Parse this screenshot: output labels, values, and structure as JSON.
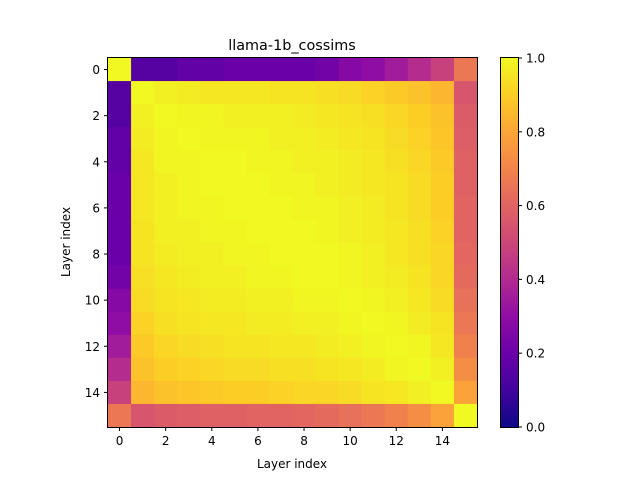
{
  "chart_data": {
    "type": "heatmap",
    "title": "llama-1b_cossims",
    "xlabel": "Layer index",
    "ylabel": "Layer index",
    "x_ticks": [
      0,
      2,
      4,
      6,
      8,
      10,
      12,
      14
    ],
    "y_ticks": [
      0,
      2,
      4,
      6,
      8,
      10,
      12,
      14
    ],
    "x_tick_labels": [
      "0",
      "2",
      "4",
      "6",
      "8",
      "10",
      "12",
      "14"
    ],
    "y_tick_labels": [
      "0",
      "2",
      "4",
      "6",
      "8",
      "10",
      "12",
      "14"
    ],
    "colormap": "plasma",
    "vmin": 0.0,
    "vmax": 1.0,
    "colorbar_ticks": [
      0.0,
      0.2,
      0.4,
      0.6,
      0.8,
      1.0
    ],
    "colorbar_tick_labels": [
      "0.0",
      "0.2",
      "0.4",
      "0.6",
      "0.8",
      "1.0"
    ],
    "matrix": [
      [
        1.0,
        0.15,
        0.15,
        0.18,
        0.18,
        0.2,
        0.2,
        0.2,
        0.2,
        0.22,
        0.27,
        0.3,
        0.35,
        0.41,
        0.48,
        0.66
      ],
      [
        0.15,
        1.0,
        0.98,
        0.97,
        0.96,
        0.96,
        0.96,
        0.95,
        0.95,
        0.94,
        0.93,
        0.91,
        0.89,
        0.87,
        0.84,
        0.55
      ],
      [
        0.15,
        0.98,
        1.0,
        0.99,
        0.99,
        0.98,
        0.98,
        0.98,
        0.97,
        0.96,
        0.95,
        0.94,
        0.92,
        0.9,
        0.87,
        0.57
      ],
      [
        0.18,
        0.97,
        0.99,
        1.0,
        0.99,
        0.99,
        0.99,
        0.98,
        0.98,
        0.97,
        0.96,
        0.95,
        0.93,
        0.91,
        0.88,
        0.58
      ],
      [
        0.18,
        0.96,
        0.99,
        0.99,
        1.0,
        1.0,
        0.99,
        0.99,
        0.98,
        0.98,
        0.97,
        0.96,
        0.94,
        0.92,
        0.89,
        0.59
      ],
      [
        0.2,
        0.96,
        0.98,
        0.99,
        1.0,
        1.0,
        1.0,
        0.99,
        0.99,
        0.98,
        0.97,
        0.96,
        0.95,
        0.93,
        0.9,
        0.59
      ],
      [
        0.2,
        0.96,
        0.98,
        0.99,
        0.99,
        1.0,
        1.0,
        1.0,
        0.99,
        0.99,
        0.98,
        0.97,
        0.95,
        0.93,
        0.9,
        0.6
      ],
      [
        0.2,
        0.95,
        0.98,
        0.98,
        0.99,
        0.99,
        1.0,
        1.0,
        1.0,
        0.99,
        0.98,
        0.97,
        0.96,
        0.94,
        0.91,
        0.6
      ],
      [
        0.2,
        0.95,
        0.97,
        0.98,
        0.98,
        0.99,
        0.99,
        1.0,
        1.0,
        1.0,
        0.99,
        0.98,
        0.96,
        0.94,
        0.92,
        0.61
      ],
      [
        0.22,
        0.94,
        0.96,
        0.97,
        0.98,
        0.98,
        0.99,
        0.99,
        1.0,
        1.0,
        0.99,
        0.98,
        0.97,
        0.95,
        0.92,
        0.62
      ],
      [
        0.27,
        0.93,
        0.95,
        0.96,
        0.97,
        0.97,
        0.98,
        0.98,
        0.99,
        0.99,
        1.0,
        0.99,
        0.98,
        0.96,
        0.93,
        0.64
      ],
      [
        0.3,
        0.91,
        0.94,
        0.95,
        0.96,
        0.96,
        0.97,
        0.97,
        0.98,
        0.98,
        0.99,
        1.0,
        0.99,
        0.97,
        0.95,
        0.66
      ],
      [
        0.35,
        0.89,
        0.92,
        0.93,
        0.94,
        0.95,
        0.95,
        0.96,
        0.96,
        0.97,
        0.98,
        0.99,
        1.0,
        0.99,
        0.96,
        0.69
      ],
      [
        0.41,
        0.87,
        0.9,
        0.91,
        0.92,
        0.93,
        0.93,
        0.94,
        0.94,
        0.95,
        0.96,
        0.97,
        0.99,
        1.0,
        0.98,
        0.73
      ],
      [
        0.48,
        0.84,
        0.87,
        0.88,
        0.89,
        0.9,
        0.9,
        0.91,
        0.92,
        0.92,
        0.93,
        0.95,
        0.96,
        0.98,
        1.0,
        0.79
      ],
      [
        0.66,
        0.55,
        0.57,
        0.58,
        0.59,
        0.59,
        0.6,
        0.6,
        0.61,
        0.62,
        0.64,
        0.66,
        0.69,
        0.73,
        0.79,
        1.0
      ]
    ]
  }
}
